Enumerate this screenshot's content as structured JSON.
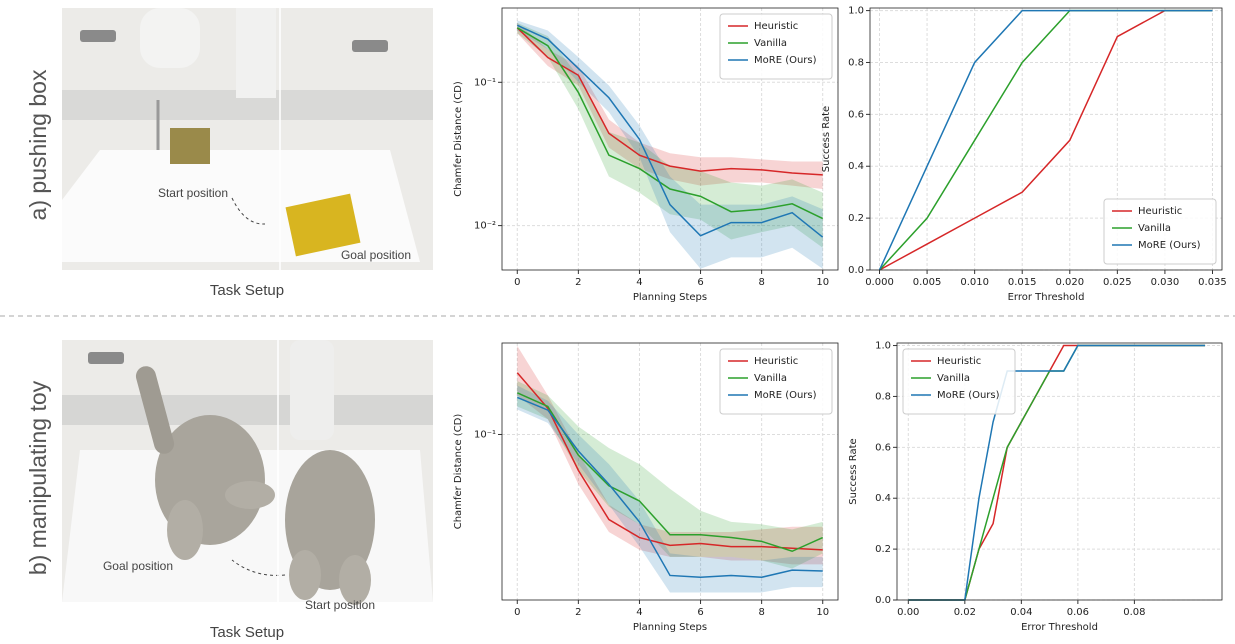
{
  "rows": [
    {
      "label": "a) pushing box",
      "caption": "Task Setup",
      "annotations": [
        "Start position",
        "Goal position"
      ]
    },
    {
      "label": "b) manipulating toy",
      "caption": "Task Setup",
      "annotations": [
        "Goal position",
        "Start position"
      ]
    }
  ],
  "chart_data": [
    {
      "type": "line",
      "xlabel": "Planning Steps",
      "ylabel": "Chamfer Distance (CD)",
      "ylog": true,
      "grid": true,
      "legend": "upper right",
      "x": [
        0,
        1,
        2,
        3,
        4,
        5,
        6,
        7,
        8,
        9,
        10
      ],
      "xlim": [
        -0.5,
        10.5
      ],
      "xticks": [
        0,
        2,
        4,
        6,
        8,
        10
      ],
      "ylim": [
        0.0049,
        0.33
      ],
      "yticks": [
        {
          "value": 0.1,
          "label": "10⁻¹"
        },
        {
          "value": 0.01,
          "label": "10⁻²"
        }
      ],
      "series": [
        {
          "name": "Heuristic",
          "color": "#d62728",
          "values": [
            0.24,
            0.149,
            0.112,
            0.044,
            0.031,
            0.026,
            0.024,
            0.025,
            0.0245,
            0.0233,
            0.0226
          ],
          "upper": [
            0.26,
            0.17,
            0.13,
            0.055,
            0.038,
            0.032,
            0.03,
            0.03,
            0.029,
            0.028,
            0.028
          ],
          "lower": [
            0.22,
            0.13,
            0.095,
            0.035,
            0.025,
            0.021,
            0.019,
            0.02,
            0.02,
            0.019,
            0.018
          ]
        },
        {
          "name": "Vanilla",
          "color": "#2ca02c",
          "values": [
            0.24,
            0.18,
            0.085,
            0.031,
            0.025,
            0.018,
            0.016,
            0.0125,
            0.013,
            0.0142,
            0.0112
          ],
          "upper": [
            0.26,
            0.21,
            0.11,
            0.045,
            0.038,
            0.026,
            0.024,
            0.02,
            0.019,
            0.021,
            0.017
          ],
          "lower": [
            0.22,
            0.15,
            0.065,
            0.022,
            0.017,
            0.012,
            0.011,
            0.008,
            0.009,
            0.01,
            0.007
          ]
        },
        {
          "name": "MoRE (Ours)",
          "color": "#1f77b4",
          "values": [
            0.25,
            0.2,
            0.125,
            0.078,
            0.04,
            0.014,
            0.0085,
            0.0105,
            0.0105,
            0.0123,
            0.0083
          ],
          "upper": [
            0.27,
            0.23,
            0.15,
            0.095,
            0.05,
            0.022,
            0.014,
            0.014,
            0.014,
            0.016,
            0.013
          ],
          "lower": [
            0.23,
            0.17,
            0.1,
            0.062,
            0.03,
            0.009,
            0.005,
            0.006,
            0.006,
            0.007,
            0.005
          ]
        }
      ]
    },
    {
      "type": "line",
      "xlabel": "Error Threshold",
      "ylabel": "Success Rate",
      "ylog": false,
      "grid": true,
      "legend": "lower right",
      "x": [
        0,
        0.005,
        0.01,
        0.015,
        0.02,
        0.025,
        0.03,
        0.035
      ],
      "xlim": [
        -0.001,
        0.036
      ],
      "xticks": [
        {
          "value": 0,
          "label": "0.000"
        },
        0.005,
        {
          "value": 0.01,
          "label": "0.010"
        },
        0.015,
        {
          "value": 0.02,
          "label": "0.020"
        },
        0.025,
        {
          "value": 0.03,
          "label": "0.030"
        },
        0.035
      ],
      "ylim": [
        0,
        1.01
      ],
      "yticks": [
        {
          "value": 0,
          "label": "0.0"
        },
        0.2,
        0.4,
        0.6,
        0.8,
        {
          "value": 1,
          "label": "1.0"
        }
      ],
      "series": [
        {
          "name": "Heuristic",
          "color": "#d62728",
          "values": [
            0,
            0.1,
            0.2,
            0.3,
            0.5,
            0.9,
            1.0,
            1.0
          ]
        },
        {
          "name": "Vanilla",
          "color": "#2ca02c",
          "values": [
            0,
            0.2,
            0.5,
            0.8,
            1.0,
            1.0,
            1.0,
            1.0
          ]
        },
        {
          "name": "MoRE (Ours)",
          "color": "#1f77b4",
          "values": [
            0,
            0.4,
            0.8,
            1.0,
            1.0,
            1.0,
            1.0,
            1.0
          ]
        }
      ]
    },
    {
      "type": "line",
      "xlabel": "Planning Steps",
      "ylabel": "Chamfer Distance (CD)",
      "ylog": true,
      "grid": true,
      "legend": "upper right",
      "x": [
        0,
        1,
        2,
        3,
        4,
        5,
        6,
        7,
        8,
        9,
        10
      ],
      "xlim": [
        -0.5,
        10.5
      ],
      "xticks": [
        0,
        2,
        4,
        6,
        8,
        10
      ],
      "ylim": [
        0.0137,
        0.3
      ],
      "yticks": [
        {
          "value": 0.1,
          "label": "10⁻¹"
        }
      ],
      "series": [
        {
          "name": "Heuristic",
          "color": "#d62728",
          "values": [
            0.21,
            0.137,
            0.065,
            0.036,
            0.029,
            0.0264,
            0.027,
            0.026,
            0.026,
            0.0255,
            0.025
          ],
          "upper": [
            0.29,
            0.16,
            0.08,
            0.043,
            0.034,
            0.031,
            0.031,
            0.031,
            0.032,
            0.033,
            0.033
          ],
          "lower": [
            0.16,
            0.12,
            0.055,
            0.031,
            0.025,
            0.023,
            0.023,
            0.022,
            0.022,
            0.021,
            0.021
          ]
        },
        {
          "name": "Vanilla",
          "color": "#2ca02c",
          "values": [
            0.165,
            0.14,
            0.078,
            0.054,
            0.045,
            0.03,
            0.03,
            0.029,
            0.0277,
            0.0246,
            0.029
          ],
          "upper": [
            0.19,
            0.16,
            0.11,
            0.085,
            0.07,
            0.052,
            0.04,
            0.035,
            0.034,
            0.032,
            0.035
          ],
          "lower": [
            0.14,
            0.12,
            0.065,
            0.042,
            0.034,
            0.023,
            0.023,
            0.023,
            0.022,
            0.02,
            0.024
          ]
        },
        {
          "name": "MoRE (Ours)",
          "color": "#1f77b4",
          "values": [
            0.156,
            0.134,
            0.082,
            0.055,
            0.035,
            0.0184,
            0.018,
            0.0184,
            0.018,
            0.0196,
            0.0194
          ],
          "upper": [
            0.18,
            0.15,
            0.1,
            0.07,
            0.045,
            0.024,
            0.023,
            0.023,
            0.022,
            0.023,
            0.023
          ],
          "lower": [
            0.135,
            0.115,
            0.07,
            0.043,
            0.026,
            0.015,
            0.015,
            0.015,
            0.015,
            0.016,
            0.016
          ]
        }
      ]
    },
    {
      "type": "line",
      "xlabel": "Error Threshold",
      "ylabel": "Success Rate",
      "ylog": false,
      "grid": true,
      "legend": "upper left",
      "x": [
        0,
        0.02,
        0.025,
        0.03,
        0.035,
        0.04,
        0.045,
        0.05,
        0.055,
        0.06,
        0.105
      ],
      "xlim": [
        -0.004,
        0.111
      ],
      "xticks": [
        {
          "value": 0,
          "label": "0.00"
        },
        0.02,
        0.04,
        0.06,
        0.08
      ],
      "ylim": [
        0,
        1.01
      ],
      "yticks": [
        {
          "value": 0,
          "label": "0.0"
        },
        0.2,
        0.4,
        0.6,
        0.8,
        {
          "value": 1,
          "label": "1.0"
        }
      ],
      "series": [
        {
          "name": "Heuristic",
          "color": "#d62728",
          "values": [
            0,
            0,
            0.2,
            0.3,
            0.6,
            0.7,
            0.8,
            0.9,
            1.0,
            1.0,
            1.0
          ]
        },
        {
          "name": "Vanilla",
          "color": "#2ca02c",
          "values": [
            0,
            0,
            0.2,
            0.4,
            0.6,
            0.7,
            0.8,
            0.9,
            0.9,
            1.0,
            1.0
          ]
        },
        {
          "name": "MoRE (Ours)",
          "color": "#1f77b4",
          "values": [
            0,
            0,
            0.4,
            0.7,
            0.9,
            0.9,
            0.9,
            0.9,
            0.9,
            1.0,
            1.0
          ]
        }
      ]
    }
  ]
}
